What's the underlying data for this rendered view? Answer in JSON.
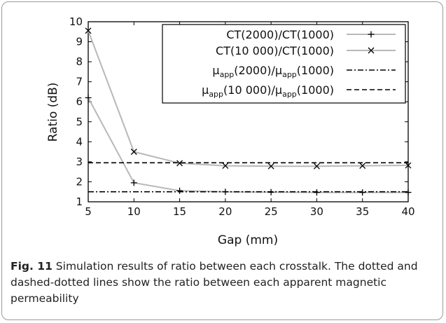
{
  "chart_data": {
    "type": "line",
    "xlabel": "Gap (mm)",
    "ylabel": "Ratio (dB)",
    "xlim": [
      5,
      40
    ],
    "ylim": [
      1,
      10
    ],
    "xticks": [
      "5",
      "10",
      "15",
      "20",
      "25",
      "30",
      "35",
      "40"
    ],
    "yticks": [
      "1",
      "2",
      "3",
      "4",
      "5",
      "6",
      "7",
      "8",
      "9",
      "10"
    ],
    "grid": false,
    "legend_position": "top-right",
    "x": [
      5,
      10,
      15,
      20,
      25,
      30,
      35,
      40
    ],
    "series": [
      {
        "name": "CT(2000)/CT(1000)",
        "style": "line-plus",
        "color": "#b8b8b8",
        "values": [
          6.2,
          1.95,
          1.55,
          1.5,
          1.48,
          1.47,
          1.47,
          1.47
        ]
      },
      {
        "name": "CT(10 000)/CT(1000)",
        "style": "line-cross",
        "color": "#b8b8b8",
        "values": [
          9.55,
          3.5,
          2.93,
          2.8,
          2.78,
          2.78,
          2.8,
          2.82
        ]
      },
      {
        "name": "μapp(2000)/μapp(1000)",
        "name_main": "μ",
        "name_sub1": "app",
        "name_mid": "(2000)/μ",
        "name_sub2": "app",
        "name_end": "(1000)",
        "style": "dash-dot",
        "color": "#000000",
        "constant": 1.5
      },
      {
        "name": "μapp(10 000)/μapp(1000)",
        "name_main": "μ",
        "name_sub1": "app",
        "name_mid": "(10 000)/μ",
        "name_sub2": "app",
        "name_end": "(1000)",
        "style": "dashed",
        "color": "#000000",
        "constant": 2.95
      }
    ]
  },
  "caption": {
    "label": "Fig. 11",
    "text": "Simulation results of ratio between each crosstalk. The dotted and dashed-dotted lines show the ratio between each apparent magnetic permeability"
  }
}
